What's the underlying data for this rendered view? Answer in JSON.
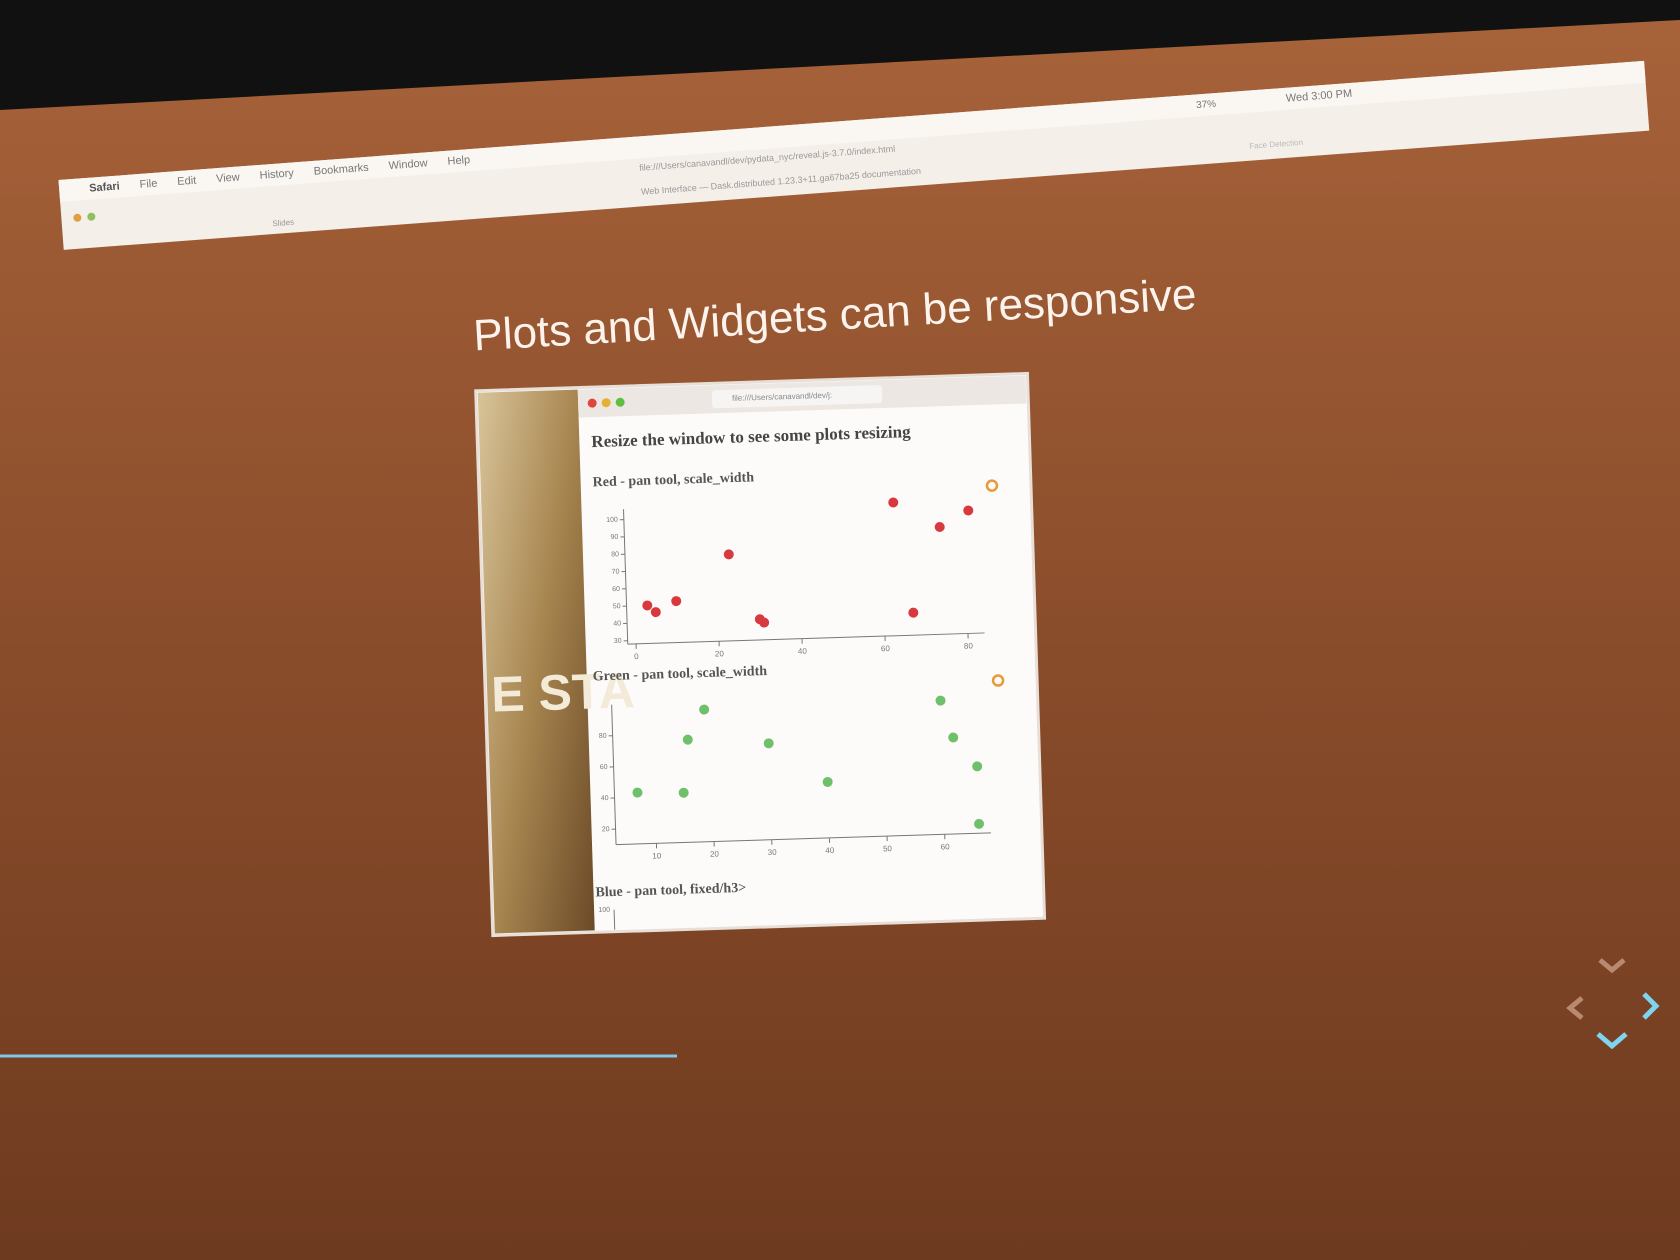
{
  "menu_bar": {
    "items": [
      "Safari",
      "File",
      "Edit",
      "View",
      "History",
      "Bookmarks",
      "Window",
      "Help"
    ],
    "battery": "37%",
    "clock": "Wed 3:00 PM"
  },
  "browser": {
    "url": "file:///Users/canavandl/dev/pydata_nyc/reveal.js-3.7.0/index.html",
    "tab_title": "Web Interface — Dask.distributed 1.23.3+11.ga67ba25 documentation",
    "left_tab": "Slides",
    "right_tab": "Face Detection"
  },
  "slide": {
    "title": "Plots and Widgets can be responsive"
  },
  "inner_page": {
    "url": "file:///Users/canavandl/dev/j:",
    "heading": "Resize the window to see some plots resizing",
    "plots": [
      {
        "title": "Red - pan tool, scale_width",
        "color": "#d8393f",
        "x": [
          3,
          5,
          10,
          23,
          30,
          31,
          63,
          67,
          74,
          81
        ],
        "y": [
          50,
          46,
          52,
          78,
          40,
          38,
          105,
          41,
          90,
          99
        ],
        "xlim": [
          -2,
          84
        ],
        "ylim": [
          28,
          106
        ],
        "xticks": [
          0,
          20,
          40,
          60,
          80
        ],
        "yticks": [
          30,
          40,
          50,
          60,
          70,
          80,
          90,
          100
        ]
      },
      {
        "title": "Green - pan tool, scale_width",
        "color": "#6fc06a",
        "x": [
          7,
          15,
          16,
          19,
          30,
          40,
          60,
          62,
          66,
          66
        ],
        "y": [
          43,
          42,
          76,
          95,
          72,
          46,
          96,
          72,
          53,
          16
        ],
        "xlim": [
          3,
          68
        ],
        "ylim": [
          10,
          100
        ],
        "xticks": [
          10,
          20,
          30,
          40,
          50,
          60
        ],
        "yticks": [
          20,
          40,
          60,
          80
        ]
      },
      {
        "title": "Blue - pan tool, fixed/h3>",
        "color": "#5a3fd0",
        "yticks": [
          100
        ]
      }
    ]
  }
}
